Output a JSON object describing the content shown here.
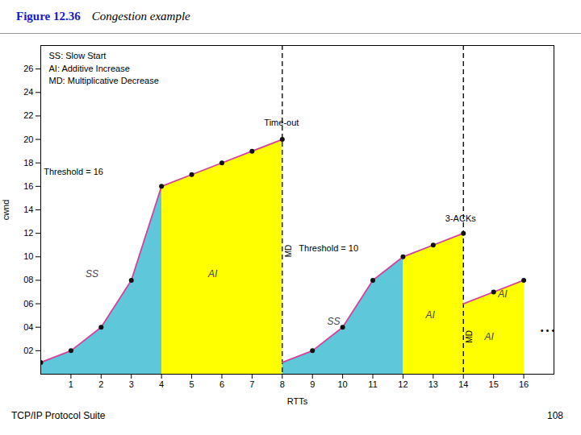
{
  "chart_data": {
    "type": "line",
    "title": "Figure 12.36",
    "subtitle": "Congestion example",
    "xlabel": "RTTs",
    "ylabel": "cwnd",
    "xlim": [
      0,
      17
    ],
    "ylim": [
      0,
      28
    ],
    "xticks": [
      1,
      2,
      3,
      4,
      5,
      6,
      7,
      8,
      9,
      10,
      11,
      12,
      13,
      14,
      15,
      16
    ],
    "yticks": [
      {
        "value": 2,
        "label": "02"
      },
      {
        "value": 4,
        "label": "04"
      },
      {
        "value": 6,
        "label": "06"
      },
      {
        "value": 8,
        "label": "08"
      },
      10,
      12,
      14,
      16,
      18,
      20,
      22,
      24,
      26
    ],
    "series": [
      {
        "type": "polygon",
        "color": "#5ec8da",
        "x": [
          0,
          0,
          1,
          2,
          3,
          4,
          4
        ],
        "values": [
          0,
          1,
          2,
          4,
          8,
          16,
          0
        ]
      },
      {
        "type": "polygon",
        "color": "#ffff00",
        "x": [
          4,
          4,
          5,
          6,
          7,
          8,
          8
        ],
        "values": [
          0,
          16,
          17,
          18,
          19,
          20,
          0
        ]
      },
      {
        "type": "polygon",
        "color": "#5ec8da",
        "x": [
          8,
          8,
          9,
          10,
          11,
          12,
          12
        ],
        "values": [
          0,
          1,
          2,
          4,
          8,
          10,
          0
        ]
      },
      {
        "type": "polygon",
        "color": "#ffff00",
        "x": [
          12,
          12,
          13,
          14,
          14
        ],
        "values": [
          0,
          10,
          11,
          12,
          0
        ]
      },
      {
        "type": "polygon",
        "color": "#ffff00",
        "x": [
          14,
          14,
          15,
          16,
          16
        ],
        "values": [
          0,
          6,
          7,
          8,
          0
        ]
      },
      {
        "type": "rule",
        "color": "#000000",
        "line_style": "dashed",
        "x": [
          8,
          14
        ]
      },
      {
        "type": "line",
        "color": "#d4429a",
        "x": [
          0,
          1,
          2,
          3,
          4,
          5,
          6,
          7,
          8
        ],
        "values": [
          1,
          2,
          4,
          8,
          16,
          17,
          18,
          19,
          20
        ]
      },
      {
        "type": "line",
        "color": "#d4429a",
        "x": [
          8,
          9,
          10,
          11,
          12,
          13,
          14
        ],
        "values": [
          1,
          2,
          4,
          8,
          10,
          11,
          12
        ]
      },
      {
        "type": "line",
        "color": "#d4429a",
        "x": [
          14,
          15,
          16
        ],
        "values": [
          6,
          7,
          8
        ]
      },
      {
        "type": "scatter",
        "color": "#111111",
        "x": [
          0,
          1,
          2,
          3,
          4,
          5,
          6,
          7,
          8,
          9,
          10,
          11,
          12,
          13,
          14,
          15,
          16
        ],
        "values": [
          1,
          2,
          4,
          8,
          16,
          17,
          18,
          19,
          20,
          2,
          4,
          8,
          10,
          11,
          12,
          7,
          8
        ]
      }
    ],
    "legend_texts": [
      "SS: Slow Start",
      "AI: Additive Increase",
      "MD: Multiplicative Decrease"
    ],
    "notes": [
      {
        "text": "Threshold = 16",
        "x": 0.1,
        "y": 17.0
      },
      {
        "text": "Threshold = 10",
        "x": 8.55,
        "y": 10.5
      },
      {
        "text": "Time-out",
        "x": 7.4,
        "y": 21.2
      },
      {
        "text": "3-ACKs",
        "x": 13.4,
        "y": 13.0
      },
      {
        "text": "• • •",
        "x": 16.55,
        "y": 3.5
      }
    ],
    "region_labels": [
      {
        "text": "SS",
        "x": 1.7,
        "y": 8.5
      },
      {
        "text": "SS",
        "x": 9.7,
        "y": 4.5
      },
      {
        "text": "AI",
        "x": 5.7,
        "y": 8.5
      },
      {
        "text": "AI",
        "x": 12.9,
        "y": 5.0
      },
      {
        "text": "AI",
        "x": 14.85,
        "y": 3.2
      },
      {
        "text": "AI",
        "x": 15.3,
        "y": 6.8
      }
    ],
    "rotated_labels": [
      {
        "text": "MD",
        "x": 8.1,
        "y": 10.5
      },
      {
        "text": "MD",
        "x": 14.1,
        "y": 3.2
      }
    ],
    "footnote": "TCP/IP Protocol Suite",
    "page": "108"
  }
}
